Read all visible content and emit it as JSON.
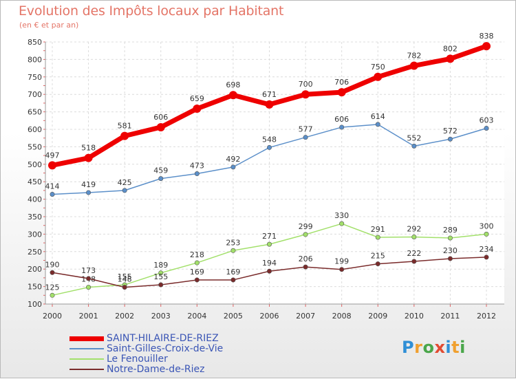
{
  "title": "Evolution des Impôts locaux par Habitant",
  "subtitle": "(en € et par an)",
  "logo": {
    "text": "Proxiti",
    "letters": [
      "P",
      "r",
      "o",
      "x",
      "i",
      "t",
      "i"
    ],
    "colors": [
      "#2f8fd6",
      "#f0a030",
      "#4aa64a",
      "#e14b32",
      "#2f8fd6",
      "#f0a030",
      "#4aa64a"
    ]
  },
  "chart_data": {
    "type": "line",
    "x": [
      "2000",
      "2001",
      "2002",
      "2003",
      "2004",
      "2005",
      "2006",
      "2007",
      "2008",
      "2009",
      "2010",
      "2011",
      "2012"
    ],
    "ylim": [
      100,
      850
    ],
    "yticks": [
      100,
      150,
      200,
      250,
      300,
      350,
      400,
      450,
      500,
      550,
      600,
      650,
      700,
      750,
      800,
      850
    ],
    "grid": true,
    "legend_position": "bottom-left",
    "series": [
      {
        "name": "SAINT-HILAIRE-DE-RIEZ",
        "color": "#ee0000",
        "emphasis": true,
        "values": [
          497,
          518,
          581,
          606,
          659,
          698,
          671,
          700,
          706,
          750,
          782,
          802,
          838
        ]
      },
      {
        "name": "Saint-Gilles-Croix-de-Vie",
        "color": "#5b8fc9",
        "emphasis": false,
        "values": [
          414,
          419,
          425,
          459,
          473,
          492,
          548,
          577,
          606,
          614,
          552,
          572,
          603
        ]
      },
      {
        "name": "Le Fenouiller",
        "color": "#a2e06a",
        "emphasis": false,
        "values": [
          125,
          148,
          155,
          189,
          218,
          253,
          271,
          299,
          330,
          291,
          292,
          289,
          300
        ]
      },
      {
        "name": "Notre-Dame-de-Riez",
        "color": "#7a2b2b",
        "emphasis": false,
        "values": [
          190,
          173,
          148,
          155,
          169,
          169,
          194,
          206,
          199,
          215,
          222,
          230,
          234
        ]
      }
    ]
  }
}
